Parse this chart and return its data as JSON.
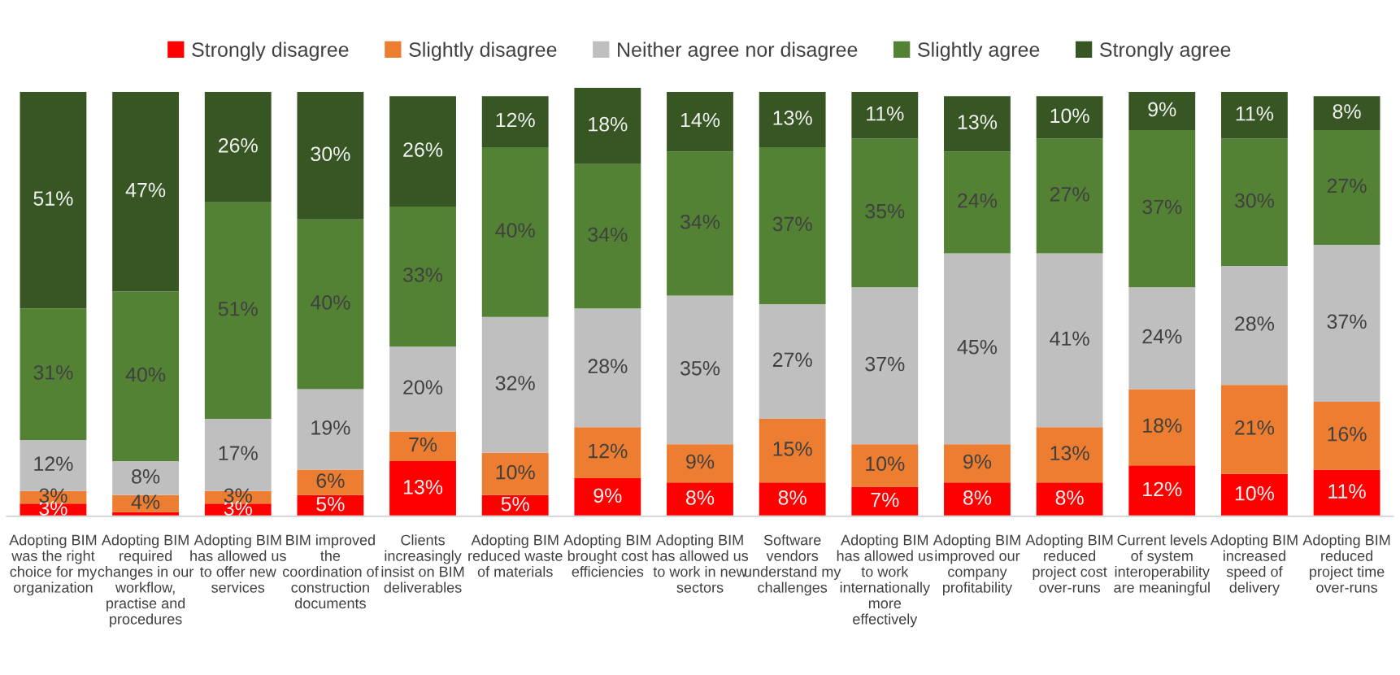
{
  "chart_data": {
    "type": "bar",
    "stacked": true,
    "legend": "top",
    "grid": false,
    "tick_labels": "x",
    "ylim": [
      0,
      101
    ],
    "categories": [
      "Adopting BIM\nwas the right\nchoice for my\norganization",
      "Adopting BIM\nrequired\nchanges in our\nworkflow,\npractise and\nprocedures",
      "Adopting BIM\nhas allowed us\nto offer new\nservices",
      "BIM improved\nthe\ncoordination of\nconstruction\ndocuments",
      "Clients\nincreasingly\ninsist on BIM\ndeliverables",
      "Adopting BIM\nreduced waste\nof materials",
      "Adopting BIM\nbrought cost\nefficiencies",
      "Adopting BIM\nhas allowed us\nto work in new\nsectors",
      "Software\nvendors\nunderstand my\nchallenges",
      "Adopting BIM\nhas allowed us\nto work\ninternationally\nmore\neffectively",
      "Adopting BIM\nimproved our\ncompany\nprofitability",
      "Adopting BIM\nreduced\nproject cost\nover-runs",
      "Current levels\nof system\ninteroperability\nare meaningful",
      "Adopting BIM\nincreased\nspeed of\ndelivery",
      "Adopting BIM\nreduced\nproject time\nover-runs"
    ],
    "series": [
      {
        "name": "Strongly disagree",
        "color": "#ff0000",
        "values": [
          3,
          1,
          3,
          5,
          13,
          5,
          9,
          8,
          8,
          7,
          8,
          8,
          12,
          10,
          11
        ],
        "value_labels": [
          "3%",
          null,
          "3%",
          "5%",
          "13%",
          "5%",
          "9%",
          "8%",
          "8%",
          "7%",
          "8%",
          "8%",
          "12%",
          "10%",
          "11%"
        ]
      },
      {
        "name": "Slightly disagree",
        "color": "#ed7d31",
        "values": [
          3,
          4,
          3,
          6,
          7,
          10,
          12,
          9,
          15,
          10,
          9,
          13,
          18,
          21,
          16
        ],
        "value_labels": [
          "3%",
          "4%",
          "3%",
          "6%",
          "7%",
          "10%",
          "12%",
          "9%",
          "15%",
          "10%",
          "9%",
          "13%",
          "18%",
          "21%",
          "16%"
        ]
      },
      {
        "name": "Neither agree nor disagree",
        "color": "#bfbfbf",
        "values": [
          12,
          8,
          17,
          19,
          20,
          32,
          28,
          35,
          27,
          37,
          45,
          41,
          24,
          28,
          37
        ],
        "value_labels": [
          "12%",
          "8%",
          "17%",
          "19%",
          "20%",
          "32%",
          "28%",
          "35%",
          "27%",
          "37%",
          "45%",
          "41%",
          "24%",
          "28%",
          "37%"
        ]
      },
      {
        "name": "Slightly agree",
        "color": "#548235",
        "values": [
          31,
          40,
          51,
          40,
          33,
          40,
          34,
          34,
          37,
          35,
          24,
          27,
          37,
          30,
          27
        ],
        "value_labels": [
          "31%",
          "40%",
          "51%",
          "40%",
          "33%",
          "40%",
          "34%",
          "34%",
          "37%",
          "35%",
          "24%",
          "27%",
          "37%",
          "30%",
          "27%"
        ]
      },
      {
        "name": "Strongly agree",
        "color": "#375623",
        "values": [
          51,
          47,
          26,
          30,
          26,
          12,
          18,
          14,
          13,
          11,
          13,
          10,
          9,
          11,
          8
        ],
        "value_labels": [
          "51%",
          "47%",
          "26%",
          "30%",
          "26%",
          "12%",
          "18%",
          "14%",
          "13%",
          "11%",
          "13%",
          "10%",
          "9%",
          "11%",
          "8%"
        ]
      }
    ]
  }
}
